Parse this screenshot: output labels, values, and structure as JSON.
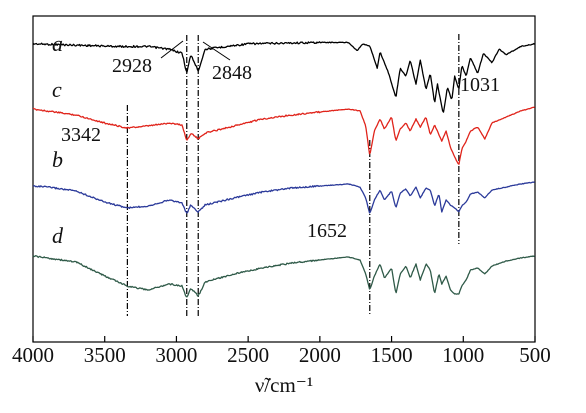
{
  "chart_data": {
    "type": "line",
    "x_axis": {
      "range": [
        4000,
        500
      ],
      "reversed": true,
      "ticks": [
        4000,
        3500,
        3000,
        2500,
        2000,
        1500,
        1000,
        500
      ],
      "tick_labels": [
        "4000",
        "3500",
        "3000",
        "2500",
        "2000",
        "1500",
        "1000",
        "500"
      ],
      "title": "ν̃/cm⁻¹"
    },
    "y_axis": {
      "ticks_shown": false
    },
    "grid": false,
    "legend": "none",
    "series": [
      {
        "name": "a",
        "color": "#000000",
        "points": [
          [
            4000,
            8
          ],
          [
            3700,
            9
          ],
          [
            3400,
            10
          ],
          [
            3200,
            10
          ],
          [
            3050,
            12
          ],
          [
            2960,
            15
          ],
          [
            2928,
            30
          ],
          [
            2900,
            16
          ],
          [
            2848,
            28
          ],
          [
            2800,
            12
          ],
          [
            2500,
            8
          ],
          [
            2000,
            7
          ],
          [
            1800,
            7
          ],
          [
            1740,
            13
          ],
          [
            1700,
            8
          ],
          [
            1650,
            10
          ],
          [
            1600,
            26
          ],
          [
            1580,
            14
          ],
          [
            1520,
            30
          ],
          [
            1470,
            48
          ],
          [
            1440,
            26
          ],
          [
            1400,
            32
          ],
          [
            1370,
            20
          ],
          [
            1330,
            38
          ],
          [
            1300,
            20
          ],
          [
            1260,
            42
          ],
          [
            1230,
            30
          ],
          [
            1200,
            52
          ],
          [
            1180,
            38
          ],
          [
            1140,
            60
          ],
          [
            1110,
            40
          ],
          [
            1080,
            50
          ],
          [
            1060,
            32
          ],
          [
            1031,
            42
          ],
          [
            1010,
            24
          ],
          [
            980,
            32
          ],
          [
            950,
            18
          ],
          [
            900,
            30
          ],
          [
            860,
            15
          ],
          [
            800,
            22
          ],
          [
            750,
            12
          ],
          [
            700,
            16
          ],
          [
            600,
            10
          ],
          [
            500,
            8
          ]
        ]
      },
      {
        "name": "c",
        "color": "#e0241b",
        "points": [
          [
            4000,
            8
          ],
          [
            3900,
            10
          ],
          [
            3700,
            14
          ],
          [
            3500,
            22
          ],
          [
            3342,
            27
          ],
          [
            3200,
            25
          ],
          [
            3050,
            22
          ],
          [
            2960,
            24
          ],
          [
            2928,
            40
          ],
          [
            2900,
            32
          ],
          [
            2848,
            38
          ],
          [
            2800,
            32
          ],
          [
            2600,
            25
          ],
          [
            2400,
            18
          ],
          [
            2200,
            14
          ],
          [
            2000,
            11
          ],
          [
            1800,
            8
          ],
          [
            1720,
            10
          ],
          [
            1680,
            25
          ],
          [
            1652,
            55
          ],
          [
            1620,
            30
          ],
          [
            1580,
            18
          ],
          [
            1550,
            28
          ],
          [
            1500,
            16
          ],
          [
            1470,
            40
          ],
          [
            1440,
            28
          ],
          [
            1400,
            22
          ],
          [
            1370,
            30
          ],
          [
            1330,
            18
          ],
          [
            1300,
            26
          ],
          [
            1260,
            16
          ],
          [
            1230,
            34
          ],
          [
            1200,
            24
          ],
          [
            1150,
            40
          ],
          [
            1120,
            30
          ],
          [
            1090,
            46
          ],
          [
            1060,
            56
          ],
          [
            1031,
            64
          ],
          [
            1010,
            48
          ],
          [
            980,
            40
          ],
          [
            950,
            30
          ],
          [
            900,
            26
          ],
          [
            850,
            38
          ],
          [
            800,
            22
          ],
          [
            700,
            16
          ],
          [
            600,
            10
          ],
          [
            500,
            6
          ]
        ]
      },
      {
        "name": "b",
        "color": "#2b3a9a",
        "points": [
          [
            4000,
            8
          ],
          [
            3900,
            9
          ],
          [
            3700,
            13
          ],
          [
            3500,
            24
          ],
          [
            3342,
            30
          ],
          [
            3200,
            28
          ],
          [
            3050,
            22
          ],
          [
            2960,
            25
          ],
          [
            2928,
            36
          ],
          [
            2900,
            27
          ],
          [
            2848,
            34
          ],
          [
            2800,
            27
          ],
          [
            2600,
            20
          ],
          [
            2400,
            14
          ],
          [
            2200,
            10
          ],
          [
            2000,
            8
          ],
          [
            1800,
            6
          ],
          [
            1720,
            9
          ],
          [
            1680,
            20
          ],
          [
            1652,
            36
          ],
          [
            1620,
            22
          ],
          [
            1580,
            12
          ],
          [
            1550,
            22
          ],
          [
            1500,
            13
          ],
          [
            1470,
            30
          ],
          [
            1440,
            15
          ],
          [
            1400,
            11
          ],
          [
            1370,
            18
          ],
          [
            1330,
            9
          ],
          [
            1300,
            20
          ],
          [
            1260,
            10
          ],
          [
            1230,
            12
          ],
          [
            1200,
            28
          ],
          [
            1170,
            16
          ],
          [
            1150,
            34
          ],
          [
            1120,
            22
          ],
          [
            1090,
            27
          ],
          [
            1060,
            30
          ],
          [
            1031,
            34
          ],
          [
            1010,
            28
          ],
          [
            980,
            24
          ],
          [
            950,
            16
          ],
          [
            900,
            14
          ],
          [
            850,
            20
          ],
          [
            800,
            12
          ],
          [
            700,
            9
          ],
          [
            600,
            6
          ],
          [
            500,
            4
          ]
        ]
      },
      {
        "name": "d",
        "color": "#2f5a48",
        "points": [
          [
            4000,
            6
          ],
          [
            3900,
            8
          ],
          [
            3700,
            12
          ],
          [
            3500,
            26
          ],
          [
            3342,
            36
          ],
          [
            3200,
            40
          ],
          [
            3050,
            34
          ],
          [
            2960,
            36
          ],
          [
            2928,
            48
          ],
          [
            2900,
            38
          ],
          [
            2848,
            46
          ],
          [
            2800,
            32
          ],
          [
            2600,
            24
          ],
          [
            2400,
            18
          ],
          [
            2200,
            13
          ],
          [
            2000,
            10
          ],
          [
            1800,
            7
          ],
          [
            1720,
            10
          ],
          [
            1680,
            24
          ],
          [
            1652,
            40
          ],
          [
            1620,
            26
          ],
          [
            1580,
            14
          ],
          [
            1550,
            28
          ],
          [
            1500,
            18
          ],
          [
            1470,
            44
          ],
          [
            1440,
            24
          ],
          [
            1400,
            16
          ],
          [
            1370,
            28
          ],
          [
            1330,
            14
          ],
          [
            1300,
            30
          ],
          [
            1260,
            14
          ],
          [
            1230,
            20
          ],
          [
            1200,
            44
          ],
          [
            1170,
            24
          ],
          [
            1150,
            34
          ],
          [
            1120,
            26
          ],
          [
            1090,
            40
          ],
          [
            1060,
            44
          ],
          [
            1031,
            44
          ],
          [
            1010,
            36
          ],
          [
            980,
            30
          ],
          [
            950,
            20
          ],
          [
            900,
            18
          ],
          [
            850,
            24
          ],
          [
            800,
            16
          ],
          [
            700,
            11
          ],
          [
            600,
            8
          ],
          [
            500,
            6
          ]
        ]
      }
    ],
    "annotations": [
      {
        "text": "2928",
        "x": 2928
      },
      {
        "text": "2848",
        "x": 2848
      },
      {
        "text": "1031",
        "x": 1031
      },
      {
        "text": "3342",
        "x": 3342
      },
      {
        "text": "1652",
        "x": 1652
      }
    ],
    "reference_lines_x": [
      3342,
      2928,
      2848,
      1652,
      1031
    ]
  }
}
